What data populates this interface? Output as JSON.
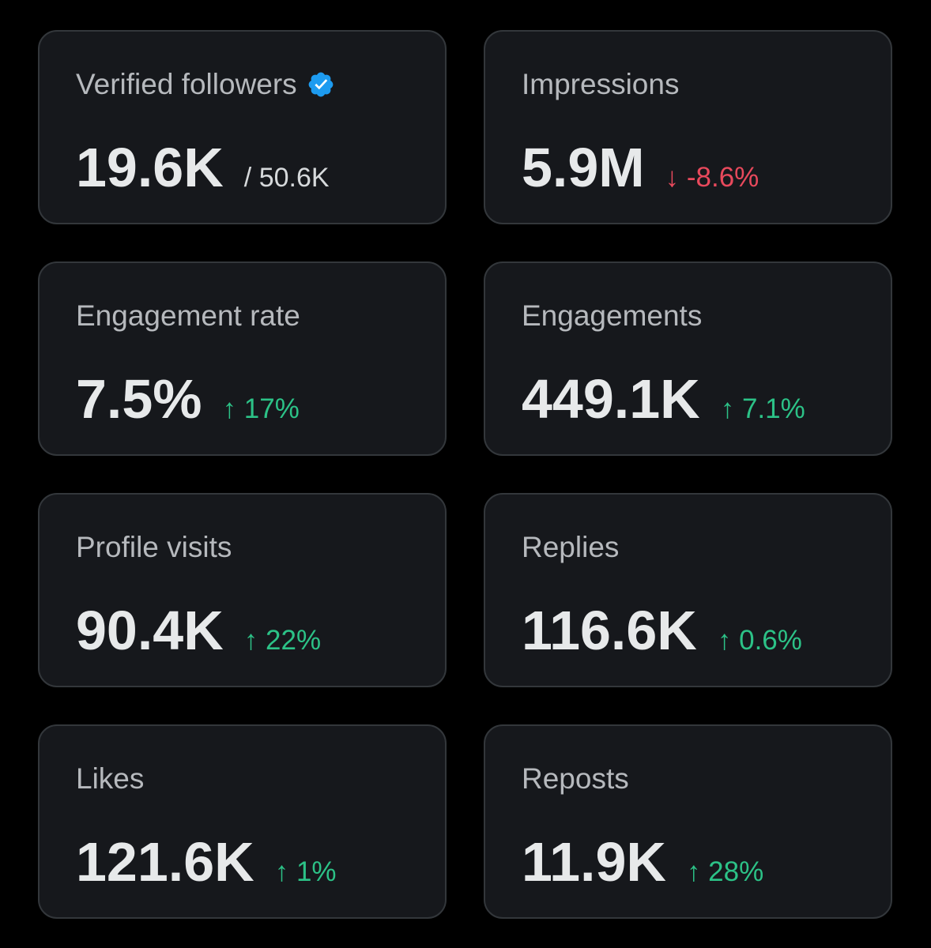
{
  "cards": [
    {
      "label": "Verified followers",
      "value": "19.6K",
      "secondary": "/ 50.6K"
    },
    {
      "label": "Impressions",
      "value": "5.9M",
      "change": "↓ -8.6%",
      "change_color": "#e8495c"
    },
    {
      "label": "Engagement rate",
      "value": "7.5%",
      "change": "↑ 17%",
      "change_color": "#2cc287"
    },
    {
      "label": "Engagements",
      "value": "449.1K",
      "change": "↑ 7.1%",
      "change_color": "#2cc287"
    },
    {
      "label": "Profile visits",
      "value": "90.4K",
      "change": "↑ 22%",
      "change_color": "#2cc287"
    },
    {
      "label": "Replies",
      "value": "116.6K",
      "change": "↑ 0.6%",
      "change_color": "#2cc287"
    },
    {
      "label": "Likes",
      "value": "121.6K",
      "change": "↑ 1%",
      "change_color": "#2cc287"
    },
    {
      "label": "Reposts",
      "value": "11.9K",
      "change": "↑ 28%",
      "change_color": "#2cc287"
    }
  ]
}
